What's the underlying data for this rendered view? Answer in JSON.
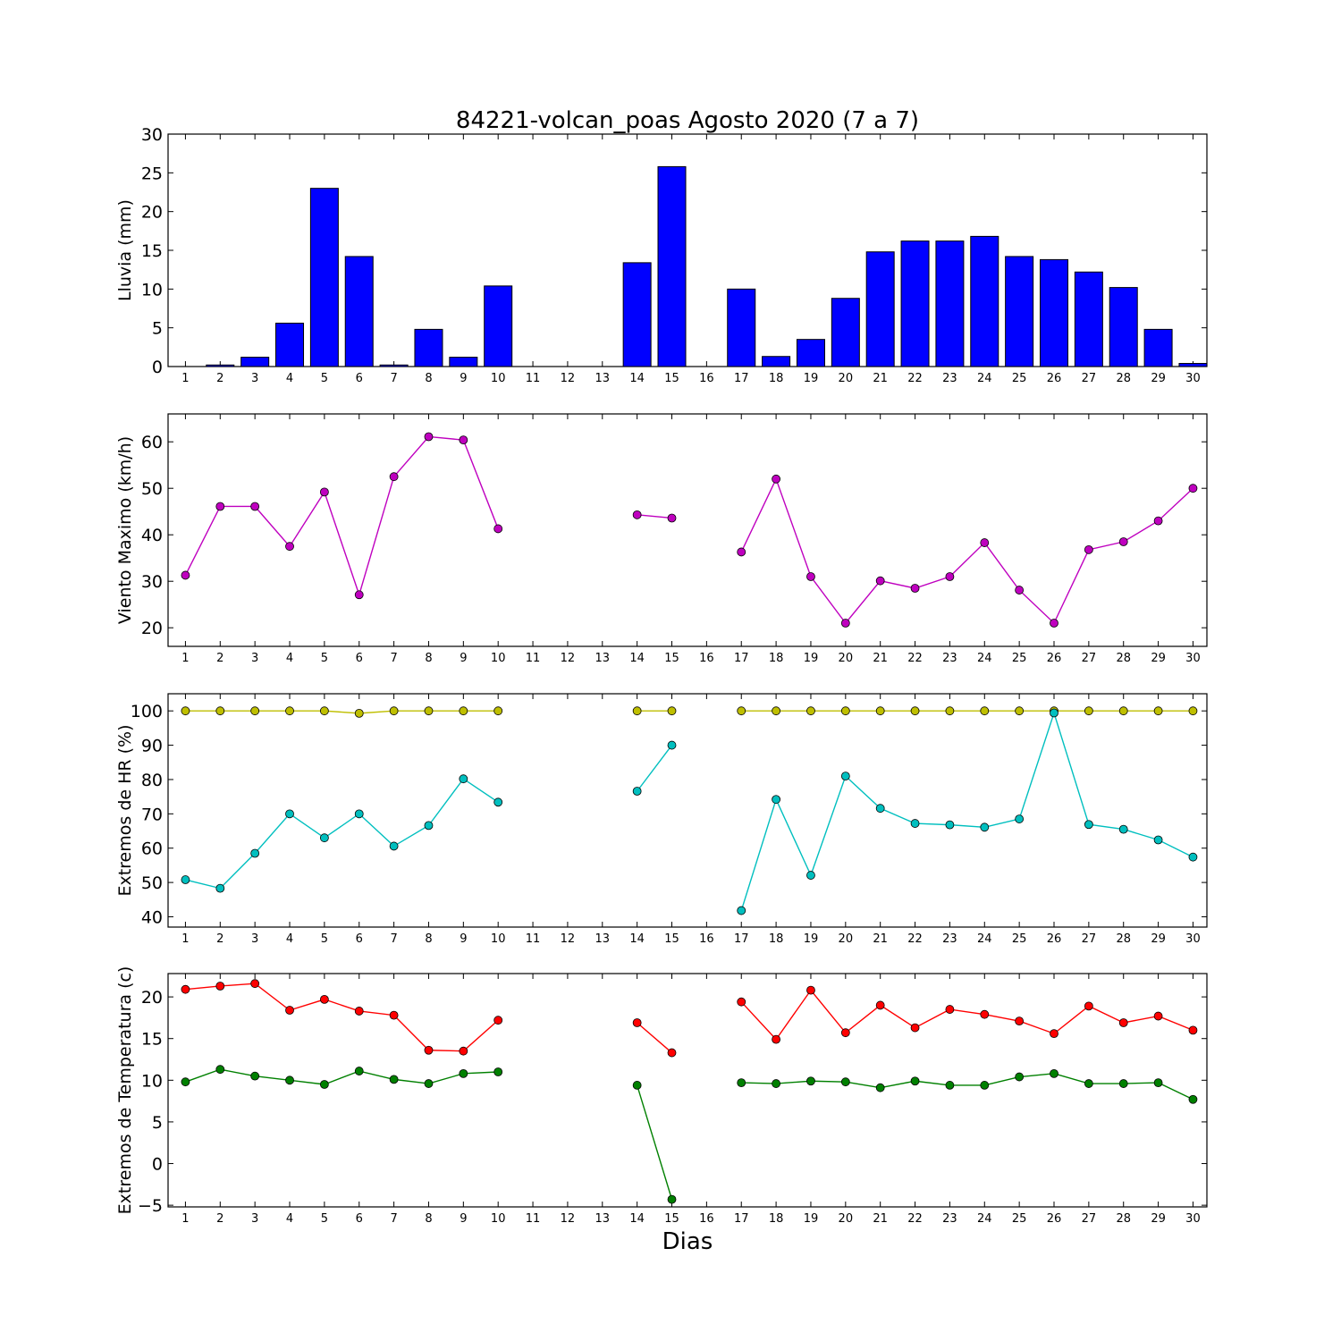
{
  "title": "84221-volcan_poas Agosto 2020  (7 a 7)",
  "xlabel": "Dias",
  "colors": {
    "rain": "#0000ff",
    "wind": "#bf00bf",
    "hr_max": "#bfbf00",
    "hr_min": "#00bfbf",
    "temp_max": "#ff0000",
    "temp_min": "#008000"
  },
  "chart_data": [
    {
      "type": "bar",
      "title": "84221-volcan_poas Agosto 2020  (7 a 7)",
      "ylabel": "Lluvia (mm)",
      "xlabel": "",
      "categories": [
        1,
        2,
        3,
        4,
        5,
        6,
        7,
        8,
        9,
        10,
        11,
        12,
        13,
        14,
        15,
        16,
        17,
        18,
        19,
        20,
        21,
        22,
        23,
        24,
        25,
        26,
        27,
        28,
        29,
        30
      ],
      "values": [
        0,
        0.2,
        1.2,
        5.6,
        23,
        14.2,
        0.2,
        4.8,
        1.2,
        10.4,
        0,
        0,
        0,
        13.4,
        25.8,
        0,
        10,
        1.3,
        3.5,
        8.8,
        14.8,
        16.2,
        16.2,
        16.8,
        14.2,
        13.8,
        12.2,
        10.2,
        4.8,
        0.4
      ],
      "ylim": [
        0,
        30
      ],
      "yticks": [
        0,
        5,
        10,
        15,
        20,
        25,
        30
      ],
      "grid": false
    },
    {
      "type": "line",
      "ylabel": "Viento Maximo (km/h)",
      "x": [
        1,
        2,
        3,
        4,
        5,
        6,
        7,
        8,
        9,
        10,
        11,
        12,
        13,
        14,
        15,
        16,
        17,
        18,
        19,
        20,
        21,
        22,
        23,
        24,
        25,
        26,
        27,
        28,
        29,
        30
      ],
      "series": [
        {
          "values": [
            31.3,
            46.1,
            46.1,
            37.5,
            49.2,
            27.1,
            52.5,
            61.1,
            60.4,
            41.3,
            null,
            null,
            null,
            44.3,
            43.6,
            null,
            36.3,
            52,
            31,
            21,
            30.1,
            28.5,
            31,
            38.3,
            28.1,
            21,
            36.8,
            38.5,
            43,
            50
          ]
        }
      ],
      "ylim": [
        16,
        66
      ],
      "yticks": [
        20,
        30,
        40,
        50,
        60
      ],
      "grid": false
    },
    {
      "type": "line",
      "ylabel": "Extremos de HR (%)",
      "x": [
        1,
        2,
        3,
        4,
        5,
        6,
        7,
        8,
        9,
        10,
        11,
        12,
        13,
        14,
        15,
        16,
        17,
        18,
        19,
        20,
        21,
        22,
        23,
        24,
        25,
        26,
        27,
        28,
        29,
        30
      ],
      "series": [
        {
          "values": [
            100,
            100,
            100,
            100,
            100,
            99.3,
            100,
            100,
            100,
            100,
            null,
            null,
            null,
            100,
            100,
            null,
            100,
            100,
            100,
            100,
            100,
            100,
            100,
            100,
            100,
            100,
            100,
            100,
            100,
            100
          ]
        },
        {
          "values": [
            50.8,
            48.3,
            58.5,
            70,
            63,
            70,
            60.6,
            66.6,
            80.2,
            73.4,
            null,
            null,
            null,
            76.6,
            90,
            null,
            41.8,
            74.2,
            52.1,
            81,
            71.6,
            67.2,
            66.8,
            66.1,
            68.5,
            99.4,
            66.9,
            65.5,
            62.4,
            57.4
          ]
        }
      ],
      "ylim": [
        37,
        105
      ],
      "yticks": [
        40,
        50,
        60,
        70,
        80,
        90,
        100
      ],
      "grid": false
    },
    {
      "type": "line",
      "ylabel": "Extremos de Temperatura (c)",
      "x": [
        1,
        2,
        3,
        4,
        5,
        6,
        7,
        8,
        9,
        10,
        11,
        12,
        13,
        14,
        15,
        16,
        17,
        18,
        19,
        20,
        21,
        22,
        23,
        24,
        25,
        26,
        27,
        28,
        29,
        30
      ],
      "series": [
        {
          "values": [
            20.9,
            21.3,
            21.6,
            18.4,
            19.7,
            18.3,
            17.8,
            13.6,
            13.5,
            17.2,
            null,
            null,
            null,
            16.9,
            13.3,
            null,
            19.4,
            14.9,
            20.8,
            15.7,
            19,
            16.3,
            18.5,
            17.9,
            17.1,
            15.6,
            18.9,
            16.9,
            17.7,
            16
          ]
        },
        {
          "values": [
            9.8,
            11.3,
            10.5,
            10,
            9.5,
            11.1,
            10.1,
            9.6,
            10.8,
            11,
            null,
            null,
            null,
            9.4,
            -4.3,
            null,
            9.7,
            9.6,
            9.9,
            9.8,
            9.1,
            9.9,
            9.4,
            9.4,
            10.4,
            10.8,
            9.6,
            9.6,
            9.7,
            7.7
          ]
        }
      ],
      "ylim": [
        -5.2,
        22.8
      ],
      "yticks": [
        -5,
        0,
        5,
        10,
        15,
        20
      ],
      "grid": false
    }
  ]
}
